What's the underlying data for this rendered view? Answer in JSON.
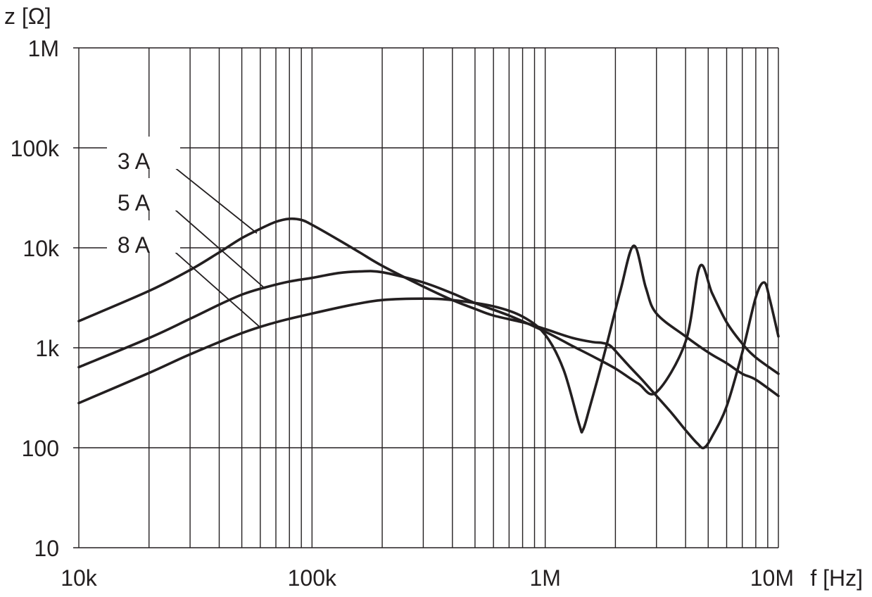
{
  "chart_data": {
    "type": "line",
    "title": "",
    "xlabel": "f [Hz]",
    "ylabel": "z [Ω]",
    "x_scale": "log",
    "y_scale": "log",
    "xlim": [
      10000,
      10000000
    ],
    "ylim": [
      10,
      1000000
    ],
    "grid": true,
    "x_ticks": [
      {
        "value": 10000,
        "label": "10k"
      },
      {
        "value": 100000,
        "label": "100k"
      },
      {
        "value": 1000000,
        "label": "1M"
      },
      {
        "value": 10000000,
        "label": "10M"
      }
    ],
    "y_ticks": [
      {
        "value": 10,
        "label": "10"
      },
      {
        "value": 100,
        "label": "100"
      },
      {
        "value": 1000,
        "label": "1k"
      },
      {
        "value": 10000,
        "label": "10k"
      },
      {
        "value": 100000,
        "label": "100k"
      },
      {
        "value": 1000000,
        "label": "1M"
      }
    ],
    "series": [
      {
        "name": "3A",
        "points": [
          [
            10000,
            1850
          ],
          [
            20000,
            3700
          ],
          [
            30000,
            6000
          ],
          [
            40000,
            9000
          ],
          [
            50000,
            12500
          ],
          [
            60000,
            15500
          ],
          [
            70000,
            18200
          ],
          [
            80000,
            19500
          ],
          [
            90000,
            19000
          ],
          [
            100000,
            17000
          ],
          [
            130000,
            12000
          ],
          [
            160000,
            9000
          ],
          [
            200000,
            6600
          ],
          [
            300000,
            4100
          ],
          [
            400000,
            3000
          ],
          [
            500000,
            2450
          ],
          [
            600000,
            2100
          ],
          [
            800000,
            1800
          ],
          [
            1000000,
            1540
          ],
          [
            1300000,
            1260
          ],
          [
            1600000,
            1140
          ],
          [
            1750000,
            1120
          ],
          [
            1900000,
            1050
          ],
          [
            2100000,
            820
          ],
          [
            2300000,
            650
          ],
          [
            2600000,
            480
          ],
          [
            3000000,
            330
          ],
          [
            3500000,
            220
          ],
          [
            4000000,
            150
          ],
          [
            4500000,
            110
          ],
          [
            4800000,
            100
          ],
          [
            5200000,
            130
          ],
          [
            6000000,
            260
          ],
          [
            7000000,
            900
          ],
          [
            8000000,
            3200
          ],
          [
            8700000,
            4500
          ],
          [
            9200000,
            3000
          ],
          [
            10000000,
            1300
          ]
        ]
      },
      {
        "name": "5A",
        "points": [
          [
            10000,
            640
          ],
          [
            20000,
            1250
          ],
          [
            30000,
            1950
          ],
          [
            40000,
            2700
          ],
          [
            50000,
            3400
          ],
          [
            60000,
            3900
          ],
          [
            80000,
            4600
          ],
          [
            100000,
            5000
          ],
          [
            130000,
            5600
          ],
          [
            160000,
            5800
          ],
          [
            200000,
            5700
          ],
          [
            300000,
            4500
          ],
          [
            400000,
            3500
          ],
          [
            500000,
            2800
          ],
          [
            700000,
            2100
          ],
          [
            1000000,
            1450
          ],
          [
            1300000,
            1050
          ],
          [
            1600000,
            820
          ],
          [
            2000000,
            620
          ],
          [
            2500000,
            440
          ],
          [
            3000000,
            360
          ],
          [
            4000000,
            1150
          ],
          [
            4600000,
            6500
          ],
          [
            5200000,
            3500
          ],
          [
            6000000,
            1800
          ],
          [
            7000000,
            1100
          ],
          [
            8000000,
            800
          ],
          [
            10000000,
            550
          ]
        ]
      },
      {
        "name": "8A",
        "points": [
          [
            10000,
            280
          ],
          [
            20000,
            560
          ],
          [
            30000,
            860
          ],
          [
            50000,
            1400
          ],
          [
            70000,
            1800
          ],
          [
            100000,
            2200
          ],
          [
            150000,
            2700
          ],
          [
            200000,
            3000
          ],
          [
            300000,
            3100
          ],
          [
            400000,
            3000
          ],
          [
            600000,
            2600
          ],
          [
            800000,
            2050
          ],
          [
            1000000,
            1350
          ],
          [
            1200000,
            600
          ],
          [
            1400000,
            170
          ],
          [
            1450000,
            150
          ],
          [
            1550000,
            250
          ],
          [
            1800000,
            900
          ],
          [
            2100000,
            3700
          ],
          [
            2400000,
            10500
          ],
          [
            2700000,
            4000
          ],
          [
            3000000,
            2200
          ],
          [
            4000000,
            1300
          ],
          [
            5000000,
            900
          ],
          [
            6000000,
            700
          ],
          [
            7000000,
            550
          ],
          [
            8000000,
            480
          ],
          [
            10000000,
            330
          ]
        ]
      }
    ]
  }
}
